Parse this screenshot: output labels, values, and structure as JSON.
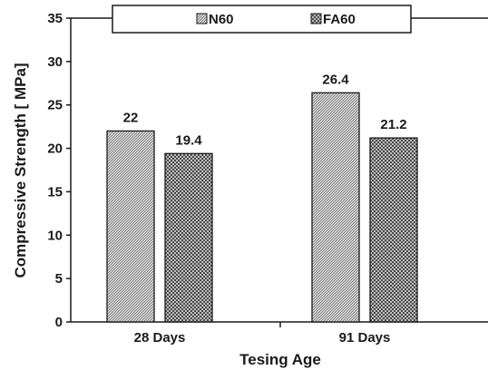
{
  "chart_data": {
    "type": "bar",
    "title": "",
    "xlabel": "Tesing Age",
    "ylabel": "Compressive Strength [ MPa]",
    "categories": [
      "28 Days",
      "91 Days"
    ],
    "series": [
      {
        "name": "N60",
        "values": [
          22,
          26.4
        ],
        "pattern": "diagonal-hatch",
        "color": "#555555"
      },
      {
        "name": "FA60",
        "values": [
          19.4,
          21.2
        ],
        "pattern": "checker",
        "color": "#444444"
      }
    ],
    "data_labels": [
      [
        "22",
        "26.4"
      ],
      [
        "19.4",
        "21.2"
      ]
    ],
    "ylim": [
      0,
      35
    ],
    "yticks": [
      0,
      5,
      10,
      15,
      20,
      25,
      30,
      35
    ],
    "grid": false,
    "legend_position": "top"
  }
}
